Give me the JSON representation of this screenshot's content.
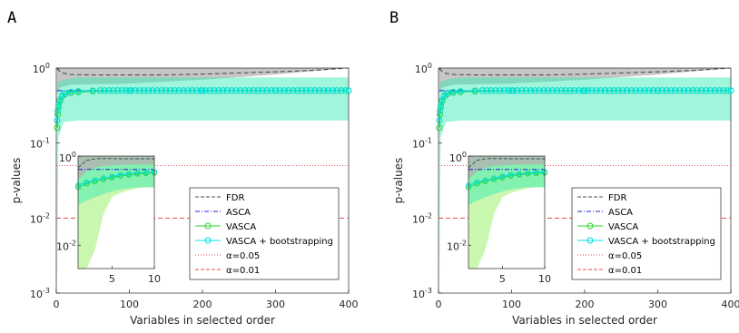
{
  "figure": {
    "colors": {
      "fdr": "#4d4d4d",
      "fdr_band": "#b3b3b3",
      "asca": "#2020dd",
      "vasca": "#2bd42b",
      "vasca_boot": "#00e0e0",
      "band_teal": "#2fe8b2",
      "band_green": "#c9f7b0",
      "alpha05": "#e64d4d",
      "alpha01": "#e64d4d"
    }
  },
  "chart_data": [
    {
      "type": "line",
      "panel_label": "A",
      "xlabel": "Variables in selected order",
      "ylabel": "p-values",
      "yscale": "log",
      "xlim": [
        0,
        400
      ],
      "ylim": [
        0.001,
        1
      ],
      "xticks": [
        0,
        100,
        200,
        300,
        400
      ],
      "xtick_labels": [
        "0",
        "100",
        "200",
        "300",
        "400"
      ],
      "yticks": [
        0.001,
        0.01,
        0.1,
        1
      ],
      "ytick_labels": [
        "10",
        "10",
        "10",
        "10"
      ],
      "ytick_exponents": [
        "-3",
        "-2",
        "-1",
        "0"
      ],
      "legend_position": "right",
      "legend": [
        "FDR",
        "ASCA",
        "VASCA",
        "VASCA + bootstrapping",
        "α=0.05",
        "α=0.01"
      ],
      "series": [
        {
          "name": "FDR",
          "style": "dashed",
          "x": [
            1,
            2,
            5,
            10,
            20,
            50,
            100,
            150,
            200,
            250,
            300,
            350,
            400
          ],
          "y": [
            0.95,
            0.97,
            0.9,
            0.85,
            0.82,
            0.81,
            0.81,
            0.81,
            0.83,
            0.86,
            0.89,
            0.93,
            1.0
          ]
        },
        {
          "name": "ASCA",
          "style": "dashdot",
          "x": [
            1,
            400
          ],
          "y": [
            0.5,
            0.5
          ]
        },
        {
          "name": "VASCA",
          "style": "solid-circle",
          "x": [
            1,
            2,
            3,
            5,
            8,
            12,
            20,
            30,
            50,
            100,
            200,
            300,
            400
          ],
          "y": [
            0.16,
            0.24,
            0.3,
            0.36,
            0.42,
            0.45,
            0.47,
            0.48,
            0.49,
            0.5,
            0.5,
            0.5,
            0.5
          ]
        },
        {
          "name": "VASCA + bootstrapping",
          "style": "solid-circle",
          "x": [
            1,
            2,
            3,
            5,
            8,
            12,
            20,
            30,
            50,
            100,
            200,
            300,
            400
          ],
          "y": [
            0.2,
            0.27,
            0.32,
            0.38,
            0.43,
            0.46,
            0.48,
            0.49,
            0.5,
            0.5,
            0.5,
            0.5,
            0.5
          ]
        },
        {
          "name": "α=0.05",
          "style": "dotted",
          "x": [
            0,
            400
          ],
          "y": [
            0.05,
            0.05
          ]
        },
        {
          "name": "α=0.01",
          "style": "dashed",
          "x": [
            0,
            400
          ],
          "y": [
            0.01,
            0.01
          ]
        }
      ],
      "bands": [
        {
          "name": "FDR range",
          "x": [
            1,
            5,
            20,
            100,
            200,
            300,
            400
          ],
          "lower": [
            0.45,
            0.55,
            0.6,
            0.62,
            0.7,
            0.82,
            1.0
          ],
          "upper": [
            1.0,
            1.0,
            1.0,
            1.0,
            1.0,
            1.0,
            1.0
          ]
        },
        {
          "name": "VASCA + bootstrapping range",
          "x": [
            1,
            3,
            10,
            30,
            100,
            400
          ],
          "lower": [
            0.001,
            0.12,
            0.19,
            0.2,
            0.2,
            0.2
          ],
          "upper": [
            0.5,
            0.65,
            0.7,
            0.75,
            0.75,
            0.75
          ]
        }
      ],
      "inset": {
        "xlim": [
          1,
          10
        ],
        "ylim": [
          0.003,
          1
        ],
        "xticks": [
          5,
          10
        ],
        "xtick_labels": [
          "5",
          "10"
        ],
        "ytick_labels": [
          "10",
          "10"
        ],
        "ytick_exponents": [
          "0",
          "-2"
        ],
        "x": [
          1,
          2,
          3,
          4,
          5,
          6,
          7,
          8,
          9,
          10
        ],
        "fdr": [
          0.55,
          0.8,
          0.87,
          0.88,
          0.88,
          0.87,
          0.87,
          0.87,
          0.87,
          0.87
        ],
        "asca": [
          0.5,
          0.5,
          0.5,
          0.5,
          0.5,
          0.5,
          0.5,
          0.5,
          0.5,
          0.5
        ],
        "vasca": [
          0.2,
          0.24,
          0.27,
          0.3,
          0.33,
          0.36,
          0.38,
          0.4,
          0.41,
          0.42
        ],
        "vasca_boot": [
          0.22,
          0.26,
          0.29,
          0.32,
          0.35,
          0.38,
          0.4,
          0.42,
          0.43,
          0.44
        ],
        "green_lower": [
          0.003,
          0.003,
          0.008,
          0.05,
          0.12,
          0.15,
          0.17,
          0.19,
          0.2,
          0.2
        ],
        "teal_lower": [
          0.08,
          0.1,
          0.12,
          0.14,
          0.16,
          0.18,
          0.19,
          0.2,
          0.2,
          0.2
        ],
        "gray_lower": [
          0.3,
          0.45,
          0.55,
          0.6,
          0.62,
          0.63,
          0.64,
          0.65,
          0.65,
          0.65
        ]
      }
    },
    {
      "type": "line",
      "panel_label": "B",
      "xlabel": "Variables in selected order",
      "ylabel": "p-values",
      "yscale": "log",
      "xlim": [
        0,
        400
      ],
      "ylim": [
        0.001,
        1
      ],
      "xticks": [
        0,
        100,
        200,
        300,
        400
      ],
      "xtick_labels": [
        "0",
        "100",
        "200",
        "300",
        "400"
      ],
      "yticks": [
        0.001,
        0.01,
        0.1,
        1
      ],
      "ytick_labels": [
        "10",
        "10",
        "10",
        "10"
      ],
      "ytick_exponents": [
        "-3",
        "-2",
        "-1",
        "0"
      ],
      "legend_position": "right",
      "legend": [
        "FDR",
        "ASCA",
        "VASCA",
        "VASCA + bootstrapping",
        "α=0.05",
        "α=0.01"
      ],
      "series": [
        {
          "name": "FDR",
          "style": "dashed",
          "x": [
            1,
            2,
            5,
            10,
            20,
            50,
            100,
            150,
            200,
            250,
            300,
            350,
            400
          ],
          "y": [
            0.95,
            0.97,
            0.9,
            0.85,
            0.82,
            0.81,
            0.81,
            0.81,
            0.83,
            0.86,
            0.89,
            0.93,
            1.0
          ]
        },
        {
          "name": "ASCA",
          "style": "dashdot",
          "x": [
            1,
            400
          ],
          "y": [
            0.5,
            0.5
          ]
        },
        {
          "name": "VASCA",
          "style": "solid-circle",
          "x": [
            1,
            2,
            3,
            5,
            8,
            12,
            20,
            30,
            50,
            100,
            200,
            300,
            400
          ],
          "y": [
            0.16,
            0.24,
            0.3,
            0.36,
            0.42,
            0.45,
            0.47,
            0.48,
            0.49,
            0.5,
            0.5,
            0.5,
            0.5
          ]
        },
        {
          "name": "VASCA + bootstrapping",
          "style": "solid-circle",
          "x": [
            1,
            2,
            3,
            5,
            8,
            12,
            20,
            30,
            50,
            100,
            200,
            300,
            400
          ],
          "y": [
            0.2,
            0.27,
            0.32,
            0.38,
            0.43,
            0.46,
            0.48,
            0.49,
            0.5,
            0.5,
            0.5,
            0.5,
            0.5
          ]
        },
        {
          "name": "α=0.05",
          "style": "dotted",
          "x": [
            0,
            400
          ],
          "y": [
            0.05,
            0.05
          ]
        },
        {
          "name": "α=0.01",
          "style": "dashed",
          "x": [
            0,
            400
          ],
          "y": [
            0.01,
            0.01
          ]
        }
      ],
      "bands": [
        {
          "name": "FDR range",
          "x": [
            1,
            5,
            20,
            100,
            200,
            300,
            400
          ],
          "lower": [
            0.45,
            0.55,
            0.6,
            0.62,
            0.7,
            0.82,
            1.0
          ],
          "upper": [
            1.0,
            1.0,
            1.0,
            1.0,
            1.0,
            1.0,
            1.0
          ]
        },
        {
          "name": "VASCA + bootstrapping range",
          "x": [
            1,
            3,
            10,
            30,
            100,
            400
          ],
          "lower": [
            0.001,
            0.12,
            0.19,
            0.2,
            0.2,
            0.2
          ],
          "upper": [
            0.5,
            0.65,
            0.7,
            0.75,
            0.75,
            0.75
          ]
        }
      ],
      "inset": {
        "xlim": [
          1,
          10
        ],
        "ylim": [
          0.003,
          1
        ],
        "xticks": [
          5,
          10
        ],
        "xtick_labels": [
          "5",
          "10"
        ],
        "ytick_labels": [
          "10",
          "10"
        ],
        "ytick_exponents": [
          "0",
          "-2"
        ],
        "x": [
          1,
          2,
          3,
          4,
          5,
          6,
          7,
          8,
          9,
          10
        ],
        "fdr": [
          0.55,
          0.8,
          0.87,
          0.88,
          0.88,
          0.87,
          0.87,
          0.87,
          0.87,
          0.87
        ],
        "asca": [
          0.5,
          0.5,
          0.5,
          0.5,
          0.5,
          0.5,
          0.5,
          0.5,
          0.5,
          0.5
        ],
        "vasca": [
          0.2,
          0.24,
          0.27,
          0.3,
          0.33,
          0.36,
          0.38,
          0.4,
          0.41,
          0.42
        ],
        "vasca_boot": [
          0.22,
          0.26,
          0.29,
          0.32,
          0.35,
          0.38,
          0.4,
          0.42,
          0.43,
          0.44
        ],
        "green_lower": [
          0.003,
          0.003,
          0.008,
          0.05,
          0.12,
          0.15,
          0.17,
          0.19,
          0.2,
          0.2
        ],
        "teal_lower": [
          0.08,
          0.1,
          0.12,
          0.14,
          0.16,
          0.18,
          0.19,
          0.2,
          0.2,
          0.2
        ],
        "gray_lower": [
          0.3,
          0.45,
          0.55,
          0.6,
          0.62,
          0.63,
          0.64,
          0.65,
          0.65,
          0.65
        ]
      }
    }
  ]
}
